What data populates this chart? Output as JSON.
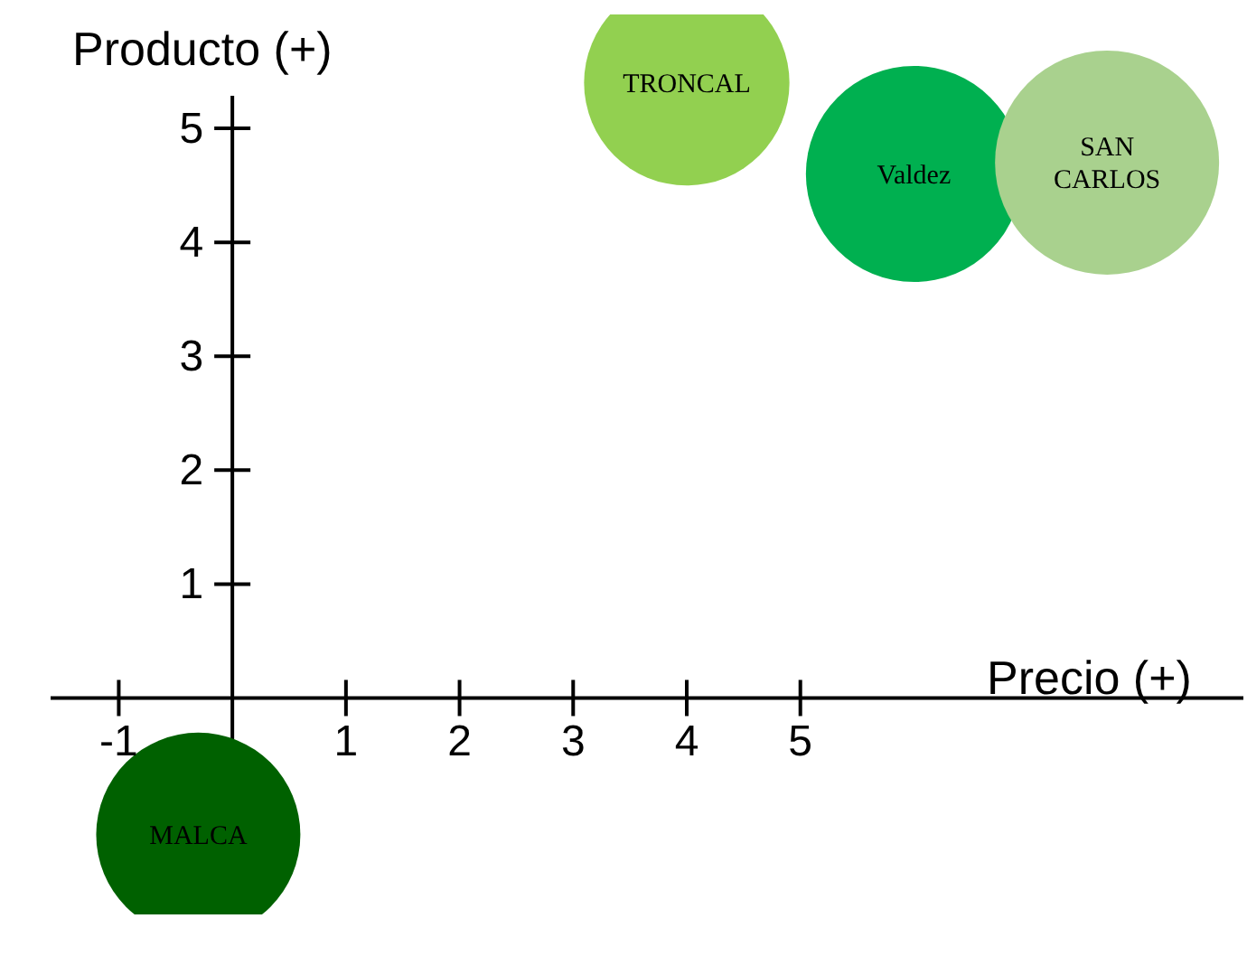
{
  "chart_data": {
    "type": "bubble",
    "xlabel": "Precio (+)",
    "ylabel": "Producto (+)",
    "xlim": [
      -1.6,
      8.9
    ],
    "ylim": [
      -1.9,
      6.0
    ],
    "xticks": [
      -1,
      1,
      2,
      3,
      4,
      5
    ],
    "yticks": [
      1,
      2,
      3,
      4,
      5
    ],
    "grid": false,
    "legend": false,
    "data_labels": false,
    "series": [
      {
        "name": "TRONCAL",
        "color": "#92d050",
        "x": [
          4.0
        ],
        "values": [
          5.4
        ],
        "sizes": [
          0.84
        ]
      },
      {
        "name": "Valdez",
        "color": "#00b050",
        "x": [
          6.0
        ],
        "values": [
          4.6
        ],
        "sizes": [
          0.93
        ]
      },
      {
        "name": "SAN CARLOS",
        "color": "#a9d18e",
        "x": [
          7.7
        ],
        "values": [
          4.7
        ],
        "sizes": [
          1
        ]
      },
      {
        "name": "MALCA",
        "color": "#006100",
        "x": [
          -0.3
        ],
        "values": [
          -1.2
        ],
        "sizes": [
          0.83
        ]
      }
    ]
  }
}
